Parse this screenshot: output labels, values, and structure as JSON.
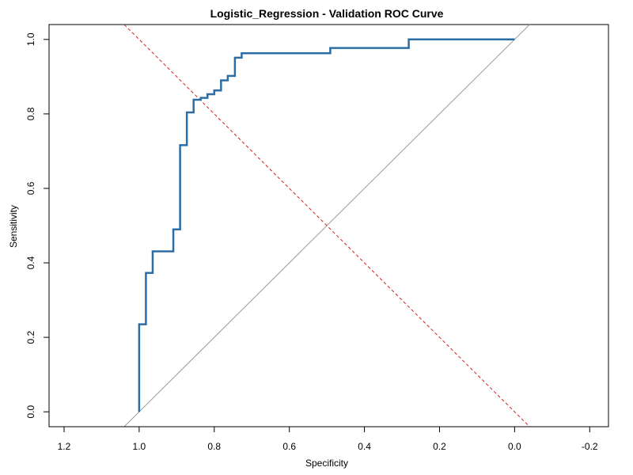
{
  "chart_data": {
    "type": "line",
    "title": "Logistic_Regression - Validation ROC Curve",
    "xlabel": "Specificity",
    "ylabel": "Sensitivity",
    "xlim": [
      1.24,
      -0.25
    ],
    "ylim": [
      -0.04,
      1.04
    ],
    "x_reversed": true,
    "x_ticks": [
      1.2,
      1.0,
      0.8,
      0.6,
      0.4,
      0.2,
      0.0,
      -0.2
    ],
    "x_tick_labels": [
      "1.2",
      "1.0",
      "0.8",
      "0.6",
      "0.4",
      "0.2",
      "0.0",
      "-0.2"
    ],
    "y_ticks": [
      0.0,
      0.2,
      0.4,
      0.6,
      0.8,
      1.0
    ],
    "y_tick_labels": [
      "0.0",
      "0.2",
      "0.4",
      "0.6",
      "0.8",
      "1.0"
    ],
    "grid": false,
    "series": [
      {
        "role": "roc-curve",
        "color": "#2b6ea6",
        "style": "step",
        "x": [
          1.0,
          1.0,
          0.982,
          0.982,
          0.964,
          0.964,
          0.909,
          0.909,
          0.891,
          0.891,
          0.873,
          0.873,
          0.855,
          0.855,
          0.836,
          0.836,
          0.818,
          0.818,
          0.8,
          0.8,
          0.782,
          0.782,
          0.764,
          0.764,
          0.745,
          0.745,
          0.727,
          0.727,
          0.491,
          0.491,
          0.282,
          0.282,
          0.0
        ],
        "y": [
          0.0,
          0.235,
          0.235,
          0.373,
          0.373,
          0.431,
          0.431,
          0.49,
          0.49,
          0.716,
          0.716,
          0.804,
          0.804,
          0.838,
          0.838,
          0.843,
          0.843,
          0.853,
          0.853,
          0.863,
          0.863,
          0.89,
          0.89,
          0.902,
          0.902,
          0.951,
          0.951,
          0.963,
          0.963,
          0.977,
          0.977,
          1.0,
          1.0
        ]
      },
      {
        "role": "chance-diagonal",
        "color": "#9a9a9a",
        "style": "solid",
        "x": [
          1.04,
          -0.04
        ],
        "y": [
          -0.04,
          1.04
        ]
      },
      {
        "role": "reference-line",
        "color": "#d62020",
        "style": "dashed",
        "x": [
          1.04,
          -0.04
        ],
        "y": [
          1.04,
          -0.04
        ]
      }
    ]
  }
}
